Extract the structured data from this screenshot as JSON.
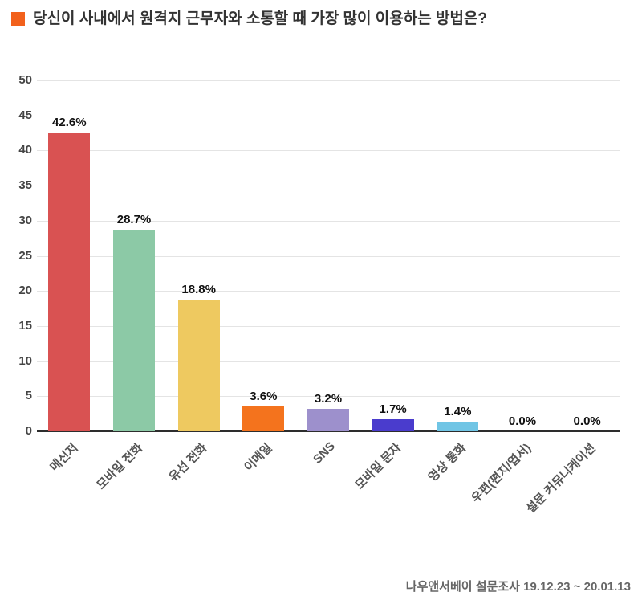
{
  "header": {
    "title": "당신이 사내에서 원격지 근무자와 소통할 때 가장 많이 이용하는 방법은?",
    "bullet_color": "#f2611c"
  },
  "footer": {
    "source": "나우앤서베이 설문조사 19.12.23 ~ 20.01.13"
  },
  "chart_data": {
    "type": "bar",
    "title": "당신이 사내에서 원격지 근무자와 소통할 때 가장 많이 이용하는 방법은?",
    "categories": [
      "메신저",
      "모바일 전화",
      "유선 전화",
      "이메일",
      "SNS",
      "모바일 문자",
      "영상 통화",
      "우편(편지/엽서)",
      "설문 커뮤니케이션"
    ],
    "values": [
      42.6,
      28.7,
      18.8,
      3.6,
      3.2,
      1.7,
      1.4,
      0.0,
      0.0
    ],
    "value_labels": [
      "42.6%",
      "28.7%",
      "18.8%",
      "3.6%",
      "3.2%",
      "1.7%",
      "1.4%",
      "0.0%",
      "0.0%"
    ],
    "bar_colors": [
      "#d95252",
      "#8cc9a6",
      "#eec960",
      "#f4731d",
      "#9d90cc",
      "#4a3ccd",
      "#70c5e5",
      null,
      null
    ],
    "xlabel": "",
    "ylabel": "",
    "ylim": [
      0,
      50
    ],
    "yticks": [
      0,
      5,
      10,
      15,
      20,
      25,
      30,
      35,
      40,
      45,
      50
    ],
    "grid": true,
    "legend": "none",
    "grid_color": "#e4e4e4",
    "axis_color": "#2d2d2d"
  }
}
